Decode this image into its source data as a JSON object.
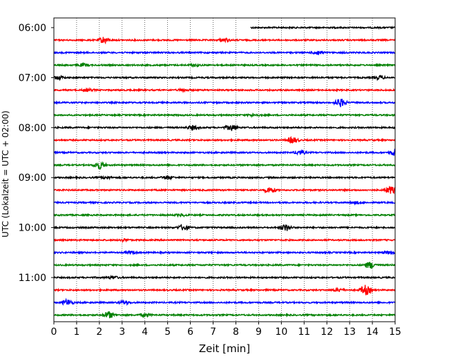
{
  "chart_data": {
    "type": "line",
    "title": "",
    "xlabel": "Zeit  [min]",
    "ylabel": "UTC (Lokalzeit = UTC + 02:00)",
    "xlim": [
      0,
      15
    ],
    "x_ticks": [
      0,
      1,
      2,
      3,
      4,
      5,
      6,
      7,
      8,
      9,
      10,
      11,
      12,
      13,
      14,
      15
    ],
    "y_tick_labels": [
      "06:00",
      "07:00",
      "08:00",
      "09:00",
      "10:00",
      "11:00"
    ],
    "vertical_gridlines": true,
    "trace_colors": [
      "#000000",
      "#ff0000",
      "#0000ff",
      "#008000"
    ],
    "traces": [
      {
        "start": "05:45",
        "x_from": 8.65,
        "color": "#000000"
      },
      {
        "start": "06:00",
        "color": "#ff0000",
        "bursts": [
          [
            2.2,
            1.6
          ],
          [
            7.5,
            0.8
          ]
        ]
      },
      {
        "start": "06:15",
        "color": "#0000ff",
        "bursts": [
          [
            11.6,
            1.0
          ]
        ]
      },
      {
        "start": "06:30",
        "color": "#008000",
        "bursts": [
          [
            1.3,
            0.7
          ],
          [
            6.2,
            0.6
          ]
        ]
      },
      {
        "start": "06:45",
        "color": "#000000",
        "bursts": [
          [
            0.2,
            0.8
          ],
          [
            14.3,
            0.8
          ]
        ]
      },
      {
        "start": "07:00",
        "color": "#ff0000",
        "bursts": [
          [
            1.5,
            0.6
          ],
          [
            5.7,
            0.6
          ]
        ]
      },
      {
        "start": "07:15",
        "color": "#0000ff",
        "bursts": [
          [
            12.6,
            1.9
          ]
        ]
      },
      {
        "start": "07:30",
        "color": "#008000",
        "bursts": [
          [
            8.8,
            0.6
          ]
        ]
      },
      {
        "start": "07:45",
        "color": "#000000",
        "bursts": [
          [
            6.1,
            1.0
          ],
          [
            7.8,
            1.4
          ]
        ]
      },
      {
        "start": "08:00",
        "color": "#ff0000",
        "bursts": [
          [
            10.5,
            1.5
          ]
        ]
      },
      {
        "start": "08:15",
        "color": "#0000ff",
        "bursts": [
          [
            10.8,
            1.0
          ],
          [
            15.0,
            1.6
          ]
        ]
      },
      {
        "start": "08:30",
        "color": "#008000",
        "bursts": [
          [
            2.0,
            1.8
          ]
        ]
      },
      {
        "start": "08:45",
        "color": "#000000",
        "bursts": [
          [
            5.0,
            0.8
          ],
          [
            2.3,
            0.6
          ]
        ]
      },
      {
        "start": "09:00",
        "color": "#ff0000",
        "bursts": [
          [
            9.5,
            1.5
          ],
          [
            14.8,
            1.7
          ]
        ]
      },
      {
        "start": "09:15",
        "color": "#0000ff",
        "bursts": [
          [
            13.3,
            0.5
          ]
        ]
      },
      {
        "start": "09:30",
        "color": "#008000",
        "bursts": [
          [
            5.6,
            0.5
          ]
        ]
      },
      {
        "start": "09:45",
        "color": "#000000",
        "bursts": [
          [
            5.7,
            1.4
          ],
          [
            10.2,
            1.6
          ]
        ]
      },
      {
        "start": "10:00",
        "color": "#ff0000",
        "bursts": [
          [
            3.1,
            0.5
          ]
        ]
      },
      {
        "start": "10:15",
        "color": "#0000ff",
        "bursts": [
          [
            3.4,
            0.6
          ],
          [
            14.7,
            0.6
          ]
        ]
      },
      {
        "start": "10:30",
        "color": "#008000",
        "bursts": [
          [
            13.9,
            1.6
          ]
        ]
      },
      {
        "start": "10:45",
        "color": "#000000",
        "bursts": [
          [
            2.6,
            0.6
          ]
        ]
      },
      {
        "start": "11:00",
        "color": "#ff0000",
        "bursts": [
          [
            13.7,
            2.4
          ],
          [
            12.5,
            0.7
          ]
        ]
      },
      {
        "start": "11:15",
        "color": "#0000ff",
        "bursts": [
          [
            0.6,
            1.5
          ],
          [
            3.1,
            0.8
          ]
        ]
      },
      {
        "start": "11:30",
        "color": "#008000",
        "bursts": [
          [
            2.4,
            1.7
          ],
          [
            4.0,
            0.7
          ]
        ]
      }
    ]
  }
}
